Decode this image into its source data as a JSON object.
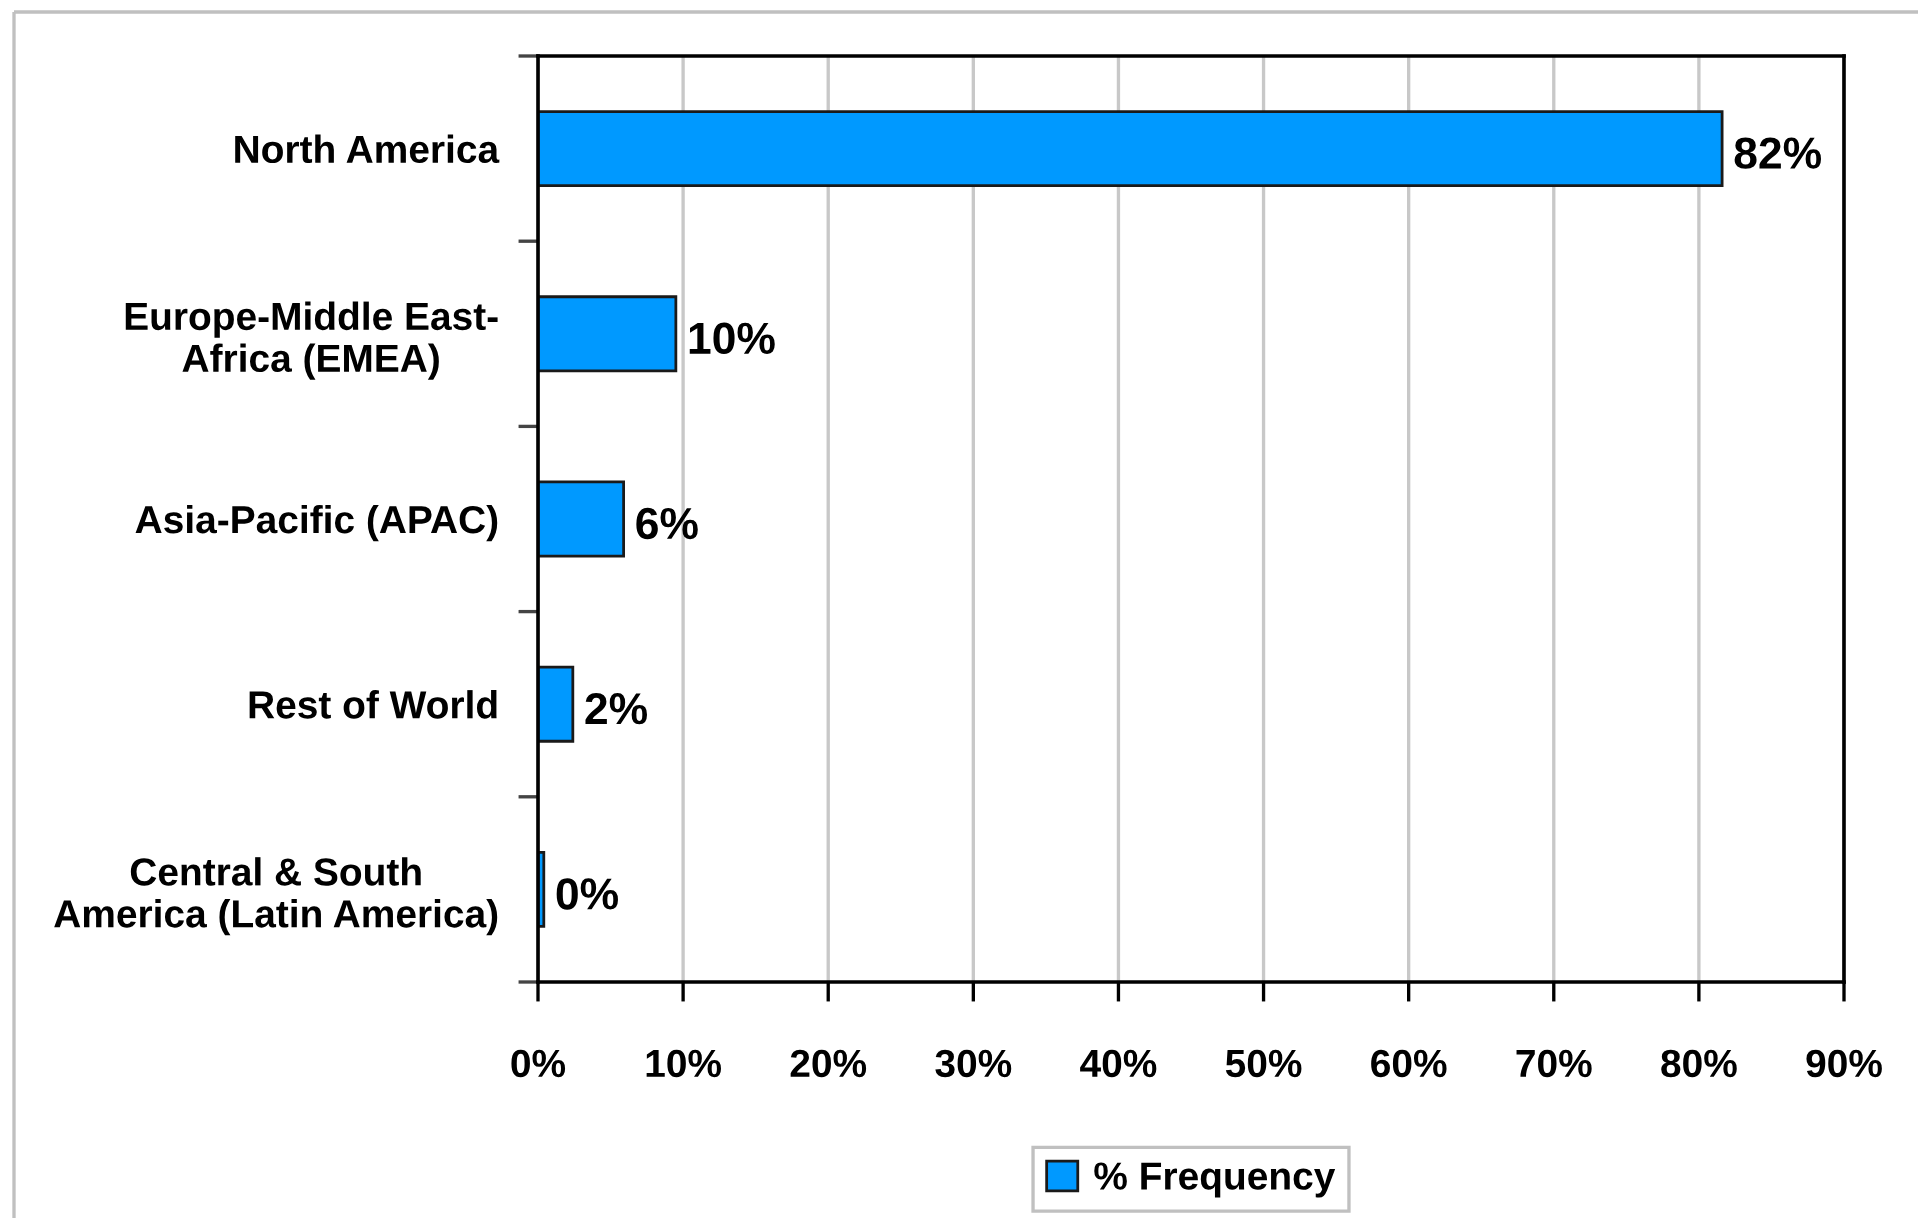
{
  "chart_data": {
    "type": "bar",
    "orientation": "horizontal",
    "categories": [
      "North America",
      "Europe-Middle East-\nAfrica (EMEA)",
      "Asia-Pacific (APAC)",
      "Rest of World",
      "Central & South\nAmerica (Latin America)"
    ],
    "series": [
      {
        "name": "% Frequency",
        "color": "#0099ff",
        "values": [
          81.6,
          9.5,
          5.9,
          2.4,
          0.4
        ],
        "value_labels": [
          "82%",
          "10%",
          "6%",
          "2%",
          "0%"
        ]
      }
    ],
    "xlim": [
      0,
      90
    ],
    "xticks": [
      {
        "value": 0,
        "label": "0%"
      },
      {
        "value": 10,
        "label": "10%"
      },
      {
        "value": 20,
        "label": "20%"
      },
      {
        "value": 30,
        "label": "30%"
      },
      {
        "value": 40,
        "label": "40%"
      },
      {
        "value": 50,
        "label": "50%"
      },
      {
        "value": 60,
        "label": "60%"
      },
      {
        "value": 70,
        "label": "70%"
      },
      {
        "value": 80,
        "label": "80%"
      },
      {
        "value": 90,
        "label": "90%"
      }
    ],
    "grid": "x",
    "legend": "bottom"
  }
}
